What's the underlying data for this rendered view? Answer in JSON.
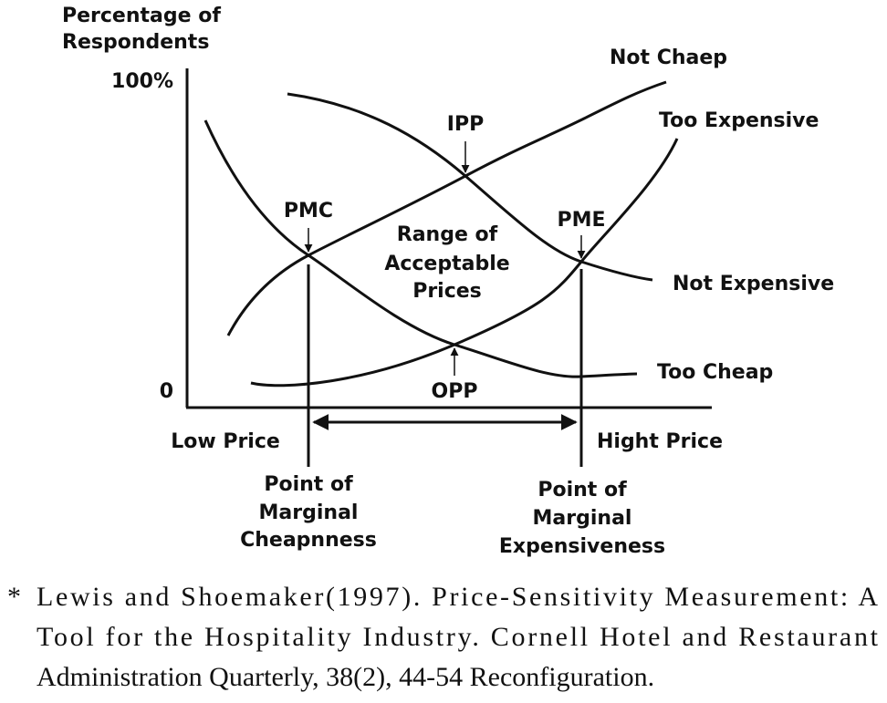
{
  "axis": {
    "y_label": [
      "Percentage of",
      "Respondents"
    ],
    "y_top": "100%",
    "y_bottom": "0",
    "x_left": "Low Price",
    "x_right": "Hight Price"
  },
  "curves": {
    "not_cheap": "Not Chaep",
    "too_expensive": "Too Expensive",
    "not_expensive": "Not Expensive",
    "too_cheap": "Too Cheap"
  },
  "points": {
    "ipp": "IPP",
    "pmc": "PMC",
    "pme": "PME",
    "opp": "OPP"
  },
  "range": [
    "Range of",
    "Acceptable",
    "Prices"
  ],
  "pmc_label": [
    "Point of",
    "Marginal",
    "Cheapnness"
  ],
  "pme_label": [
    "Point of",
    "Marginal",
    "Expensiveness"
  ],
  "caption": {
    "mark": "*",
    "lines": [
      "Lewis and Shoemaker(1997). Price-Sensitivity Measurement: A",
      "Tool for the Hospitality Industry. Cornell Hotel and Restaurant",
      "Administration Quarterly, 38(2), 44-54 Reconfiguration."
    ]
  }
}
